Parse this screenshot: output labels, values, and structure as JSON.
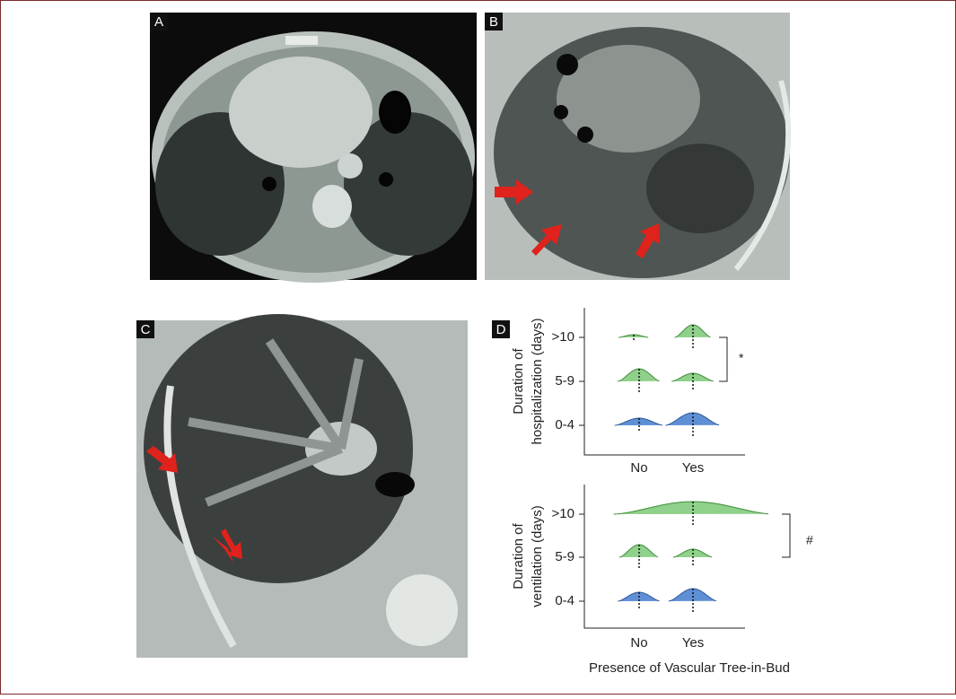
{
  "panels": [
    {
      "label": "A"
    },
    {
      "label": "B"
    },
    {
      "label": "C"
    },
    {
      "label": "D"
    }
  ],
  "plot_d": {
    "top": {
      "y_label_lines": [
        "Duration of",
        "hospitalization (days)"
      ],
      "categories": [
        ">10",
        "5-9",
        "0-4"
      ],
      "x_categories": [
        "No",
        "Yes"
      ],
      "significance": "*"
    },
    "bottom": {
      "y_label_lines": [
        "Duration of",
        "ventilation (days)"
      ],
      "categories": [
        ">10",
        "5-9",
        "0-4"
      ],
      "x_categories": [
        "No",
        "Yes"
      ],
      "significance": "#"
    },
    "x_label": "Presence of Vascular Tree-in-Bud"
  }
}
